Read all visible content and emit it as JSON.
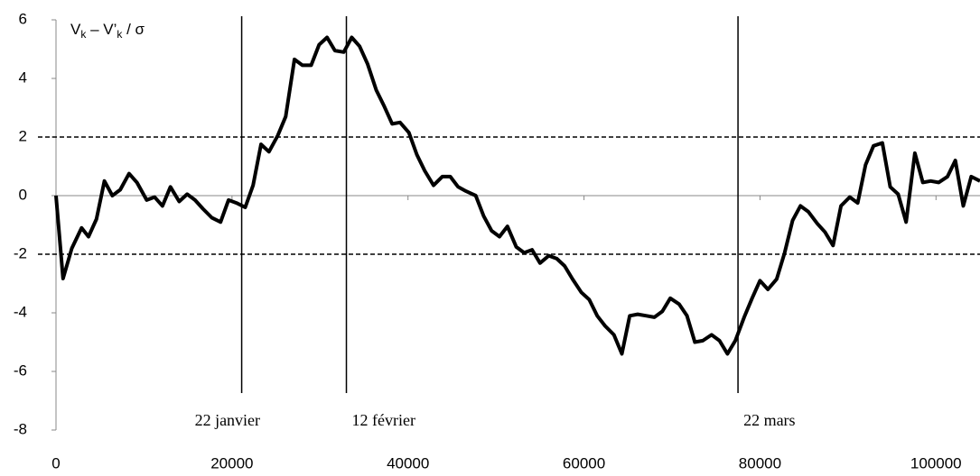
{
  "chart_data": {
    "type": "line",
    "y_label_parts": [
      "V",
      "k",
      " – V’",
      "k",
      " / σ"
    ],
    "x": [
      0,
      800,
      1800,
      2900,
      3700,
      4600,
      5500,
      6400,
      7300,
      8300,
      9200,
      10300,
      11200,
      12100,
      13000,
      14000,
      14900,
      15800,
      16700,
      17700,
      18700,
      19600,
      20500,
      21500,
      22400,
      23300,
      24200,
      25200,
      26100,
      27100,
      28000,
      29000,
      29900,
      30800,
      31700,
      32700,
      33600,
      34500,
      35400,
      36400,
      37300,
      38200,
      39100,
      40100,
      41000,
      41900,
      42900,
      43900,
      44800,
      45700,
      46600,
      47700,
      48600,
      49500,
      50400,
      51300,
      52300,
      53200,
      54100,
      55000,
      56000,
      56900,
      57800,
      58700,
      59700,
      60600,
      61500,
      62400,
      63400,
      64300,
      65200,
      66100,
      67100,
      68000,
      68900,
      69800,
      70800,
      71700,
      72600,
      73500,
      74500,
      75400,
      76300,
      77200,
      78200,
      79100,
      80000,
      80900,
      81900,
      82800,
      83700,
      84600,
      85500,
      86500,
      87400,
      88300,
      89200,
      90200,
      91100,
      92000,
      92900,
      93900,
      94800,
      95700,
      96600,
      97600,
      98500,
      99400,
      100300,
      101300,
      102200,
      103100,
      104000,
      105000
    ],
    "series": [
      {
        "name": "V",
        "color": "#000000",
        "values": [
          0,
          -2.83,
          -1.8,
          -1.1,
          -1.4,
          -0.8,
          0.5,
          0,
          0.2,
          0.75,
          0.45,
          -0.15,
          -0.05,
          -0.35,
          0.3,
          -0.2,
          0.05,
          -0.15,
          -0.45,
          -0.75,
          -0.9,
          -0.15,
          -0.25,
          -0.4,
          0.35,
          1.75,
          1.5,
          2.05,
          2.7,
          4.65,
          4.45,
          4.45,
          5.15,
          5.4,
          4.95,
          4.9,
          5.4,
          5.1,
          4.5,
          3.6,
          3.05,
          2.45,
          2.5,
          2.15,
          1.4,
          0.85,
          0.35,
          0.65,
          0.65,
          0.3,
          0.15,
          0,
          -0.7,
          -1.2,
          -1.4,
          -1.05,
          -1.75,
          -1.95,
          -1.85,
          -2.3,
          -2.05,
          -2.15,
          -2.4,
          -2.85,
          -3.3,
          -3.55,
          -4.1,
          -4.45,
          -4.75,
          -5.4,
          -4.1,
          -4.05,
          -4.1,
          -4.15,
          -3.95,
          -3.5,
          -3.7,
          -4.1,
          -5.0,
          -4.95,
          -4.75,
          -4.95,
          -5.4,
          -4.95,
          -4.15,
          -3.5,
          -2.9,
          -3.2,
          -2.85,
          -1.95,
          -0.85,
          -0.35,
          -0.55,
          -0.95,
          -1.25,
          -1.7,
          -0.35,
          -0.05,
          -0.25,
          1.05,
          1.7,
          1.8,
          0.3,
          0.05,
          -0.9,
          1.45,
          0.45,
          0.5,
          0.45,
          0.65,
          1.2,
          -0.35,
          0.65,
          0.5
        ]
      }
    ],
    "xlim": [
      0,
      105000
    ],
    "ylim": [
      -8,
      6
    ],
    "xticks": [
      0,
      20000,
      40000,
      60000,
      80000,
      100000
    ],
    "yticks": [
      -8,
      -6,
      -4,
      -2,
      0,
      2,
      4,
      6
    ],
    "hlines": [
      2,
      -2
    ],
    "annotations": [
      {
        "label": "22 janvier",
        "x": 21100
      },
      {
        "label": "12 février",
        "x": 33000
      },
      {
        "label": "22 mars",
        "x": 77500
      }
    ]
  }
}
